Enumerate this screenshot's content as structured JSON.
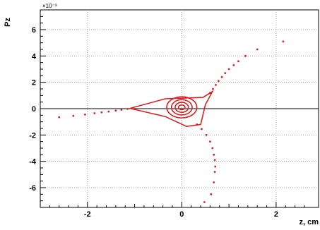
{
  "chart_data": {
    "type": "scatter",
    "xlabel": "z, cm",
    "ylabel": "Pz",
    "y_exponent_label": "×10⁻³",
    "xlim": [
      -3.0,
      2.9
    ],
    "ylim": [
      -7.5,
      7.5
    ],
    "x_ticks": [
      -2,
      0,
      2
    ],
    "y_ticks": [
      -6,
      -4,
      -2,
      0,
      2,
      4,
      6
    ],
    "grid": true,
    "marker_color": "#e02020",
    "left_arm_points": [
      [
        -2.6,
        -0.65
      ],
      [
        -2.3,
        -0.55
      ],
      [
        -2.05,
        -0.45
      ],
      [
        -1.85,
        -0.35
      ],
      [
        -1.7,
        -0.28
      ],
      [
        -1.55,
        -0.22
      ],
      [
        -1.4,
        -0.15
      ],
      [
        -1.28,
        -0.08
      ],
      [
        -1.15,
        -0.02
      ],
      [
        -1.05,
        0.02
      ]
    ],
    "upper_arm_points": [
      [
        2.15,
        5.1
      ],
      [
        1.6,
        4.5
      ],
      [
        1.35,
        4.0
      ],
      [
        1.2,
        3.6
      ],
      [
        1.1,
        3.3
      ],
      [
        1.0,
        3.0
      ],
      [
        0.92,
        2.7
      ],
      [
        0.85,
        2.4
      ],
      [
        0.78,
        2.1
      ],
      [
        0.72,
        1.8
      ],
      [
        0.66,
        1.5
      ],
      [
        0.6,
        1.2
      ]
    ],
    "lower_arm_points": [
      [
        0.48,
        -7.1
      ],
      [
        0.62,
        -6.5
      ],
      [
        0.68,
        -5.6
      ],
      [
        0.7,
        -4.8
      ],
      [
        0.71,
        -4.4
      ],
      [
        0.7,
        -3.9
      ],
      [
        0.68,
        -3.5
      ],
      [
        0.65,
        -3.0
      ],
      [
        0.6,
        -2.5
      ],
      [
        0.52,
        -2.0
      ],
      [
        0.42,
        -1.55
      ],
      [
        0.32,
        -1.2
      ]
    ],
    "core_orbits": [
      {
        "cx": 0.0,
        "cy": 0.1,
        "rx": 0.07,
        "ry": 0.18
      },
      {
        "cx": 0.0,
        "cy": 0.1,
        "rx": 0.14,
        "ry": 0.38
      },
      {
        "cx": 0.0,
        "cy": 0.1,
        "rx": 0.22,
        "ry": 0.58
      },
      {
        "cx": 0.0,
        "cy": 0.1,
        "rx": 0.32,
        "ry": 0.8
      }
    ],
    "separatrix_triangle": [
      [
        -1.1,
        0.02
      ],
      [
        -0.35,
        0.75
      ],
      [
        0.45,
        0.85
      ],
      [
        0.65,
        1.3
      ],
      [
        0.5,
        0.3
      ],
      [
        0.4,
        -1.2
      ],
      [
        0.1,
        -1.35
      ],
      [
        -0.35,
        -0.6
      ],
      [
        -1.1,
        0.02
      ]
    ]
  }
}
